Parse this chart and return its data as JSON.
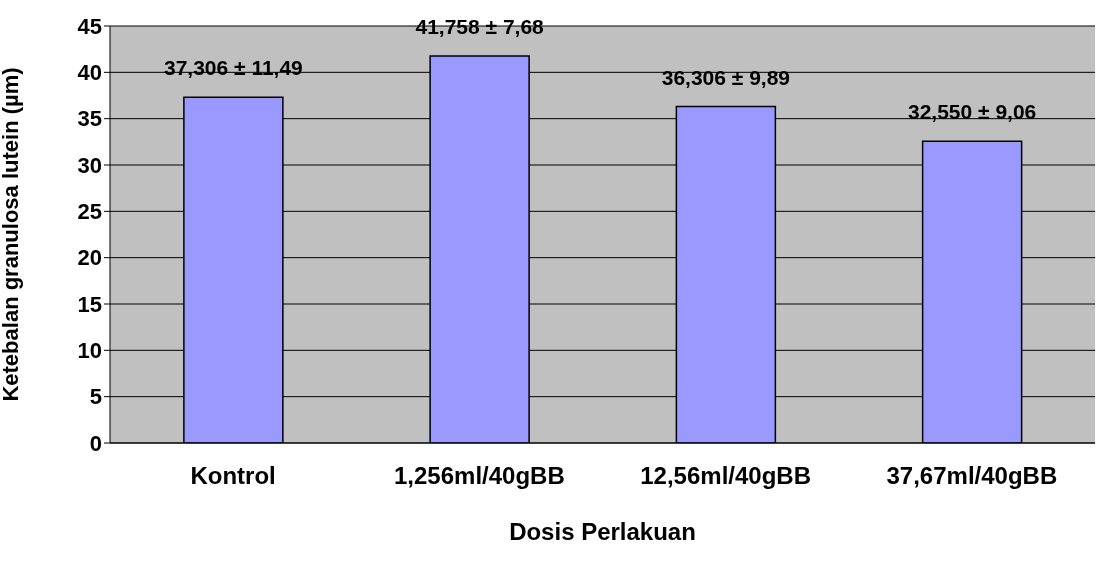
{
  "chart_data": {
    "type": "bar",
    "xlabel": "Dosis Perlakuan",
    "ylabel": "Ketebalan granulosa lutein (µm)",
    "categories": [
      "Kontrol",
      "1,256ml/40gBB",
      "12,56ml/40gBB",
      "37,67ml/40gBB"
    ],
    "values": [
      37.306,
      41.758,
      36.306,
      32.55
    ],
    "value_labels": [
      "37,306 ± 11,49",
      "41,758 ± 7,68",
      "36,306 ± 9,89",
      "32,550 ± 9,06"
    ],
    "color": "#9999ff",
    "ylim": [
      0,
      45
    ],
    "yticks": [
      0,
      5,
      10,
      15,
      20,
      25,
      30,
      35,
      40,
      45
    ],
    "grid": "y",
    "legend": false
  }
}
